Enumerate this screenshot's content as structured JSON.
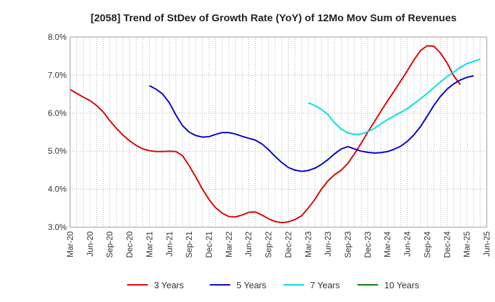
{
  "chart_data": {
    "type": "line",
    "title": "[2058]  Trend of StDev of Growth Rate (YoY) of 12Mo Mov Sum of Revenues",
    "xlabel": "",
    "ylabel": "",
    "ylim": [
      3.0,
      8.0
    ],
    "yticks": [
      "3.0%",
      "4.0%",
      "5.0%",
      "6.0%",
      "7.0%",
      "8.0%"
    ],
    "ytick_values": [
      3.0,
      4.0,
      5.0,
      6.0,
      7.0,
      8.0
    ],
    "xticks": [
      "Mar-20",
      "Jun-20",
      "Sep-20",
      "Dec-20",
      "Mar-21",
      "Jun-21",
      "Sep-21",
      "Dec-21",
      "Mar-22",
      "Jun-22",
      "Sep-22",
      "Dec-22",
      "Mar-23",
      "Jun-23",
      "Sep-23",
      "Dec-23",
      "Mar-24",
      "Jun-24",
      "Sep-24",
      "Dec-24",
      "Mar-25",
      "Jun-25"
    ],
    "x_start": "Mar-20",
    "grid": true,
    "legend_position": "bottom",
    "series": [
      {
        "name": "3 Years",
        "color": "#dd0000",
        "start_index": 0,
        "values": [
          6.62,
          6.52,
          6.42,
          6.33,
          6.2,
          6.03,
          5.8,
          5.6,
          5.42,
          5.27,
          5.15,
          5.06,
          5.01,
          4.99,
          4.99,
          5.0,
          4.99,
          4.88,
          4.62,
          4.32,
          4.0,
          3.73,
          3.51,
          3.37,
          3.28,
          3.27,
          3.32,
          3.39,
          3.4,
          3.32,
          3.22,
          3.15,
          3.12,
          3.14,
          3.2,
          3.3,
          3.5,
          3.73,
          4.0,
          4.22,
          4.38,
          4.5,
          4.68,
          4.93,
          5.2,
          5.5,
          5.77,
          6.05,
          6.32,
          6.58,
          6.85,
          7.12,
          7.4,
          7.65,
          7.77,
          7.76,
          7.58,
          7.32,
          6.98,
          6.75
        ]
      },
      {
        "name": "5 Years",
        "color": "#0000cc",
        "start_index": 12,
        "values": [
          6.72,
          6.63,
          6.5,
          6.27,
          5.95,
          5.67,
          5.5,
          5.41,
          5.37,
          5.38,
          5.44,
          5.49,
          5.49,
          5.45,
          5.39,
          5.34,
          5.29,
          5.19,
          5.04,
          4.86,
          4.7,
          4.57,
          4.5,
          4.47,
          4.49,
          4.55,
          4.65,
          4.78,
          4.93,
          5.06,
          5.12,
          5.06,
          5.0,
          4.97,
          4.95,
          4.96,
          4.99,
          5.05,
          5.13,
          5.26,
          5.43,
          5.65,
          5.92,
          6.2,
          6.44,
          6.63,
          6.77,
          6.87,
          6.94,
          6.98
        ]
      },
      {
        "name": "7 Years",
        "color": "#00e0e0",
        "start_index": 36,
        "values": [
          6.27,
          6.2,
          6.1,
          5.96,
          5.74,
          5.58,
          5.48,
          5.44,
          5.45,
          5.51,
          5.6,
          5.72,
          5.83,
          5.93,
          6.02,
          6.12,
          6.25,
          6.38,
          6.52,
          6.67,
          6.82,
          6.96,
          7.08,
          7.2,
          7.3,
          7.36,
          7.42
        ]
      },
      {
        "name": "10 Years",
        "color": "#008000",
        "start_index": 0,
        "values": []
      }
    ]
  }
}
